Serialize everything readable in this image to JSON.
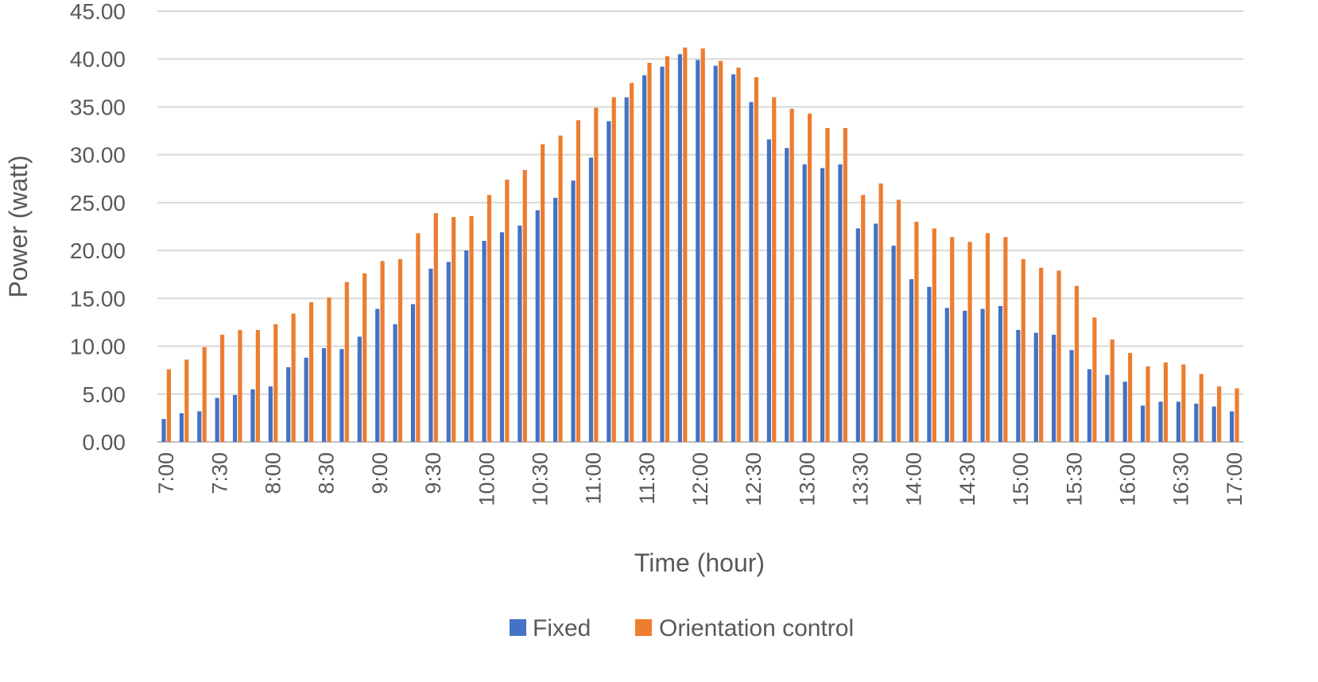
{
  "chart_data": {
    "type": "bar",
    "title": "",
    "xlabel": "Time (hour)",
    "ylabel": "Power (watt)",
    "ylim": [
      0,
      45
    ],
    "yticks": [
      "0.00",
      "5.00",
      "10.00",
      "15.00",
      "20.00",
      "25.00",
      "30.00",
      "35.00",
      "40.00",
      "45.00"
    ],
    "xtick_labels": [
      "7:00",
      "7:30",
      "8:00",
      "8:30",
      "9:00",
      "9:30",
      "10:00",
      "10:30",
      "11:00",
      "11:30",
      "12:00",
      "12:30",
      "13:00",
      "13:30",
      "14:00",
      "14:30",
      "15:00",
      "15:30",
      "16:00",
      "16:30",
      "17:00"
    ],
    "categories": [
      "7:00",
      "7:10",
      "7:20",
      "7:30",
      "7:40",
      "7:50",
      "8:00",
      "8:10",
      "8:20",
      "8:30",
      "8:40",
      "8:50",
      "9:00",
      "9:10",
      "9:20",
      "9:30",
      "9:40",
      "9:50",
      "10:00",
      "10:10",
      "10:20",
      "10:30",
      "10:40",
      "10:50",
      "11:00",
      "11:10",
      "11:20",
      "11:30",
      "11:40",
      "11:50",
      "12:00",
      "12:10",
      "12:20",
      "12:30",
      "12:40",
      "12:50",
      "13:00",
      "13:10",
      "13:20",
      "13:30",
      "13:40",
      "13:50",
      "14:00",
      "14:10",
      "14:20",
      "14:30",
      "14:40",
      "14:50",
      "15:00",
      "15:10",
      "15:20",
      "15:30",
      "15:40",
      "15:50",
      "16:00",
      "16:10",
      "16:20",
      "16:30",
      "16:40",
      "16:50",
      "17:00"
    ],
    "grid": true,
    "legend_position": "bottom",
    "series": [
      {
        "name": "Fixed",
        "color": "#4472C4",
        "values": [
          2.4,
          3.0,
          3.2,
          4.6,
          4.9,
          5.5,
          5.8,
          7.8,
          8.8,
          9.8,
          9.7,
          11.0,
          13.9,
          12.3,
          14.4,
          18.1,
          18.8,
          20.0,
          21.0,
          21.9,
          22.6,
          24.2,
          25.5,
          27.3,
          29.7,
          33.5,
          36.0,
          38.3,
          39.2,
          40.5,
          39.9,
          39.3,
          38.4,
          35.5,
          31.6,
          30.7,
          29.0,
          28.6,
          29.0,
          22.3,
          22.8,
          20.5,
          17.0,
          16.2,
          14.0,
          13.7,
          13.9,
          14.2,
          11.7,
          11.4,
          11.2,
          9.6,
          7.6,
          7.0,
          6.3,
          3.8,
          4.2,
          4.2,
          4.0,
          3.7,
          3.2
        ]
      },
      {
        "name": "Orientation control",
        "color": "#ED7D31",
        "values": [
          7.6,
          8.6,
          9.9,
          11.2,
          11.7,
          11.7,
          12.3,
          13.4,
          14.6,
          15.1,
          16.7,
          17.6,
          18.9,
          19.1,
          21.8,
          23.9,
          23.5,
          23.6,
          25.8,
          27.4,
          28.4,
          31.1,
          32.0,
          33.6,
          34.9,
          36.0,
          37.5,
          39.6,
          40.3,
          41.2,
          41.1,
          39.8,
          39.1,
          38.1,
          36.0,
          34.8,
          34.3,
          32.8,
          32.8,
          25.8,
          27.0,
          25.3,
          23.0,
          22.3,
          21.4,
          20.9,
          21.8,
          21.4,
          19.1,
          18.2,
          17.9,
          16.3,
          13.0,
          10.7,
          9.3,
          7.9,
          8.3,
          8.1,
          7.1,
          5.8,
          5.6
        ]
      }
    ]
  }
}
